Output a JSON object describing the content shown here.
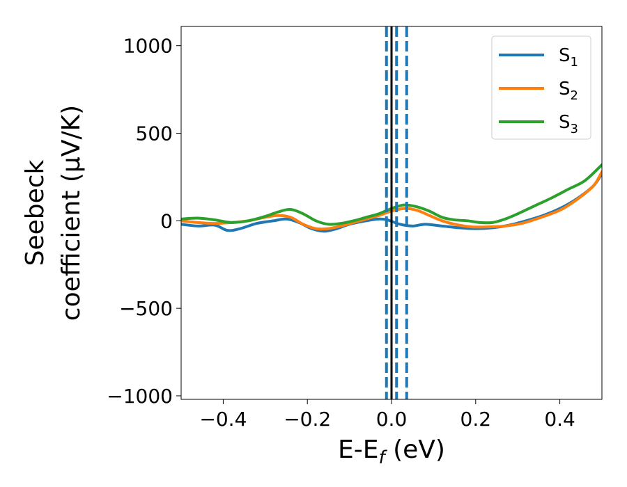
{
  "chart_data": {
    "type": "line",
    "xlabel": "E-E",
    "xlabel_sub": "f",
    "xlabel_unit": " (eV)",
    "ylabel_line1": "Seebeck",
    "ylabel_line2": "coefficient  (μV/K)",
    "xlim": [
      -0.5,
      0.5
    ],
    "ylim": [
      -1020,
      1110
    ],
    "xticks": [
      -0.4,
      -0.2,
      0.0,
      0.2,
      0.4
    ],
    "xtick_labels": [
      "−0.4",
      "−0.2",
      "0.0",
      "0.2",
      "0.4"
    ],
    "yticks": [
      -1000,
      -500,
      0,
      500,
      1000
    ],
    "ytick_labels": [
      "−1000",
      "−500",
      "0",
      "500",
      "1000"
    ],
    "grid": false,
    "legend_position": "top-right",
    "vlines": [
      {
        "x": 0.0,
        "style": "solid",
        "color": "#000000"
      },
      {
        "x": -0.012,
        "style": "dashed",
        "color": "#1f77b4"
      },
      {
        "x": 0.012,
        "style": "dashed",
        "color": "#1f77b4"
      },
      {
        "x": 0.036,
        "style": "dashed",
        "color": "#1f77b4"
      }
    ],
    "series": [
      {
        "name": "S",
        "sub": "1",
        "color": "#1f77b4",
        "points": [
          [
            -0.5,
            -20
          ],
          [
            -0.46,
            -30
          ],
          [
            -0.42,
            -25
          ],
          [
            -0.39,
            -55
          ],
          [
            -0.36,
            -45
          ],
          [
            -0.32,
            -15
          ],
          [
            -0.28,
            0
          ],
          [
            -0.25,
            10
          ],
          [
            -0.22,
            -10
          ],
          [
            -0.19,
            -45
          ],
          [
            -0.16,
            -60
          ],
          [
            -0.13,
            -45
          ],
          [
            -0.1,
            -20
          ],
          [
            -0.06,
            0
          ],
          [
            -0.03,
            10
          ],
          [
            -0.01,
            5
          ],
          [
            0.02,
            -20
          ],
          [
            0.05,
            -30
          ],
          [
            0.08,
            -20
          ],
          [
            0.12,
            -30
          ],
          [
            0.16,
            -40
          ],
          [
            0.2,
            -45
          ],
          [
            0.24,
            -40
          ],
          [
            0.28,
            -25
          ],
          [
            0.32,
            0
          ],
          [
            0.36,
            30
          ],
          [
            0.4,
            70
          ],
          [
            0.44,
            125
          ],
          [
            0.48,
            200
          ],
          [
            0.5,
            270
          ]
        ]
      },
      {
        "name": "S",
        "sub": "2",
        "color": "#ff7f0e",
        "points": [
          [
            -0.5,
            0
          ],
          [
            -0.46,
            -10
          ],
          [
            -0.42,
            -15
          ],
          [
            -0.38,
            -10
          ],
          [
            -0.34,
            0
          ],
          [
            -0.3,
            20
          ],
          [
            -0.27,
            30
          ],
          [
            -0.24,
            20
          ],
          [
            -0.21,
            -20
          ],
          [
            -0.18,
            -45
          ],
          [
            -0.15,
            -45
          ],
          [
            -0.12,
            -30
          ],
          [
            -0.09,
            -10
          ],
          [
            -0.06,
            10
          ],
          [
            -0.03,
            30
          ],
          [
            0.0,
            55
          ],
          [
            0.03,
            70
          ],
          [
            0.06,
            60
          ],
          [
            0.09,
            30
          ],
          [
            0.12,
            0
          ],
          [
            0.15,
            -20
          ],
          [
            0.19,
            -35
          ],
          [
            0.23,
            -35
          ],
          [
            0.27,
            -30
          ],
          [
            0.31,
            -15
          ],
          [
            0.35,
            15
          ],
          [
            0.4,
            60
          ],
          [
            0.44,
            120
          ],
          [
            0.48,
            200
          ],
          [
            0.5,
            280
          ]
        ]
      },
      {
        "name": "S",
        "sub": "3",
        "color": "#2ca02c",
        "points": [
          [
            -0.5,
            10
          ],
          [
            -0.46,
            15
          ],
          [
            -0.42,
            5
          ],
          [
            -0.38,
            -10
          ],
          [
            -0.34,
            0
          ],
          [
            -0.3,
            25
          ],
          [
            -0.27,
            50
          ],
          [
            -0.24,
            65
          ],
          [
            -0.21,
            40
          ],
          [
            -0.18,
            0
          ],
          [
            -0.15,
            -20
          ],
          [
            -0.12,
            -15
          ],
          [
            -0.09,
            0
          ],
          [
            -0.06,
            20
          ],
          [
            -0.03,
            40
          ],
          [
            0.0,
            70
          ],
          [
            0.03,
            90
          ],
          [
            0.06,
            80
          ],
          [
            0.09,
            55
          ],
          [
            0.12,
            20
          ],
          [
            0.15,
            5
          ],
          [
            0.18,
            0
          ],
          [
            0.21,
            -10
          ],
          [
            0.24,
            -10
          ],
          [
            0.27,
            10
          ],
          [
            0.3,
            40
          ],
          [
            0.34,
            85
          ],
          [
            0.38,
            130
          ],
          [
            0.42,
            180
          ],
          [
            0.46,
            230
          ],
          [
            0.5,
            320
          ]
        ]
      }
    ]
  }
}
